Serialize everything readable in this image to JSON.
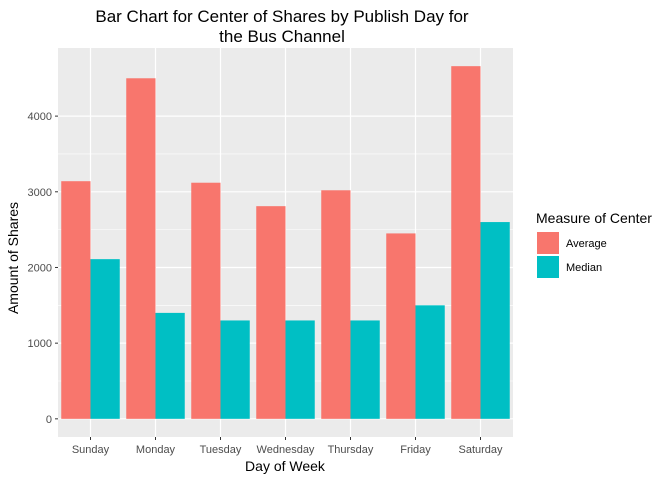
{
  "chart_data": {
    "type": "bar",
    "title_lines": [
      "Bar Chart for Center of Shares by Publish Day for",
      "the Bus Channel"
    ],
    "xlabel": "Day of Week",
    "ylabel": "Amount of Shares",
    "categories": [
      "Sunday",
      "Monday",
      "Tuesday",
      "Wednesday",
      "Thursday",
      "Friday",
      "Saturday"
    ],
    "series": [
      {
        "name": "Average",
        "color": "#F8766D",
        "values": [
          3140,
          4500,
          3120,
          2810,
          3020,
          2450,
          4660
        ]
      },
      {
        "name": "Median",
        "color": "#00BFC4",
        "values": [
          2110,
          1400,
          1300,
          1300,
          1300,
          1500,
          2600
        ]
      }
    ],
    "ylim": [
      -240,
      4900
    ],
    "yticks": [
      0,
      1000,
      2000,
      3000,
      4000
    ],
    "grid": true,
    "legend": {
      "title": "Measure of Center",
      "position": "right"
    },
    "panel_background": "#EBEBEB",
    "grid_color": "#FFFFFF"
  }
}
